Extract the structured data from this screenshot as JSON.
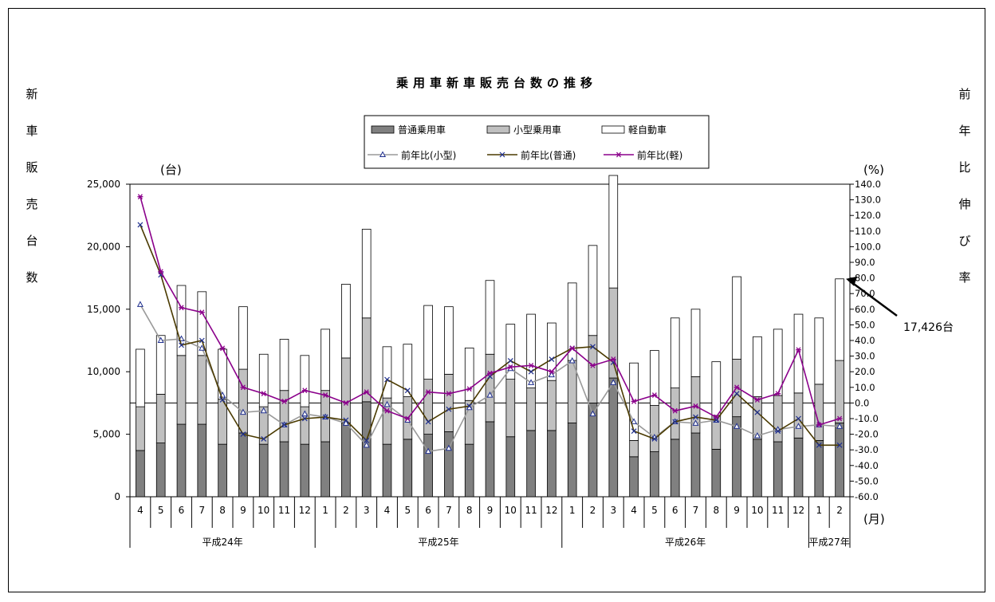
{
  "chart_data": {
    "type": "bar",
    "title": "乗用車新車販売台数の推移",
    "left_axis_label": "新車販売台数",
    "right_axis_label": "前年比伸び率",
    "left_unit": "(台)",
    "right_unit": "(%)",
    "x_unit": "(月)",
    "callout": "17,426台",
    "ylim": [
      0,
      25000
    ],
    "y_ticks": [
      "0",
      "5,000",
      "10,000",
      "15,000",
      "20,000",
      "25,000"
    ],
    "y2lim": [
      -60,
      140
    ],
    "y2_ticks": [
      "-60.0",
      "-50.0",
      "-40.0",
      "-30.0",
      "-20.0",
      "-10.0",
      "0.0",
      "10.0",
      "20.0",
      "30.0",
      "40.0",
      "50.0",
      "60.0",
      "70.0",
      "80.0",
      "90.0",
      "100.0",
      "110.0",
      "120.0",
      "130.0",
      "140.0"
    ],
    "categories": [
      "4",
      "5",
      "6",
      "7",
      "8",
      "9",
      "10",
      "11",
      "12",
      "1",
      "2",
      "3",
      "4",
      "5",
      "6",
      "7",
      "8",
      "9",
      "10",
      "11",
      "12",
      "1",
      "2",
      "3",
      "4",
      "5",
      "6",
      "7",
      "8",
      "9",
      "10",
      "11",
      "12",
      "1",
      "2"
    ],
    "year_groups": [
      {
        "label": "平成24年",
        "count": 9
      },
      {
        "label": "平成25年",
        "count": 12
      },
      {
        "label": "平成26年",
        "count": 12
      },
      {
        "label": "平成27年",
        "count": 2
      }
    ],
    "bar_series": [
      {
        "name": "普通乗用車",
        "color": "#808080",
        "values": [
          3700,
          4300,
          5800,
          5800,
          4200,
          5100,
          4200,
          4400,
          4200,
          4400,
          5900,
          7600,
          4200,
          4600,
          5000,
          5200,
          4200,
          6000,
          4800,
          5300,
          5300,
          5900,
          7500,
          9500,
          3200,
          3600,
          4600,
          5100,
          3800,
          6400,
          4600,
          4400,
          4700,
          4500,
          5900
        ]
      },
      {
        "name": "小型乗用車",
        "color": "#c0c0c0",
        "values": [
          3500,
          3900,
          5500,
          5500,
          3600,
          5100,
          3000,
          4100,
          3000,
          4100,
          5200,
          6700,
          3700,
          3400,
          4400,
          4600,
          3500,
          5400,
          4600,
          3400,
          4000,
          5000,
          5400,
          7200,
          1300,
          3700,
          4100,
          4500,
          2700,
          4600,
          3400,
          3700,
          3600,
          4500,
          5000
        ]
      },
      {
        "name": "軽自動車",
        "color": "#ffffff",
        "values": [
          4600,
          4700,
          5600,
          5100,
          4000,
          5000,
          4200,
          4100,
          4100,
          4900,
          5900,
          7100,
          4100,
          4200,
          5900,
          5400,
          4200,
          5900,
          4400,
          5900,
          4600,
          6200,
          7200,
          9000,
          6200,
          4400,
          5600,
          5400,
          4300,
          6600,
          4800,
          5300,
          6300,
          5300,
          6526
        ]
      }
    ],
    "line_series": [
      {
        "name": "前年比(小型)",
        "color": "#9a9a9a",
        "marker": "triangle",
        "values": [
          63,
          40,
          41,
          35,
          5,
          -6,
          -5,
          -14,
          -7,
          -9,
          -13,
          -27,
          -1,
          -11,
          -31,
          -29,
          -3,
          5,
          22,
          13,
          18,
          27,
          -7,
          13,
          -12,
          -22,
          -12,
          -13,
          -11,
          -15,
          -21,
          -17,
          -15,
          -14,
          -15
        ]
      },
      {
        "name": "前年比(普通)",
        "color": "#4a3a00",
        "marker": "x",
        "values": [
          114,
          82,
          37,
          40,
          2,
          -20,
          -23,
          -14,
          -10,
          -9,
          -11,
          -24,
          15,
          8,
          -12,
          -4,
          -2,
          17,
          27,
          20,
          28,
          35,
          36,
          26,
          -18,
          -23,
          -12,
          -9,
          -11,
          6,
          -6,
          -18,
          -10,
          -27,
          -27
        ]
      },
      {
        "name": "前年比(軽)",
        "color": "#8b008b",
        "marker": "asterisk",
        "values": [
          132,
          84,
          61,
          58,
          35,
          10,
          6,
          1,
          8,
          5,
          0,
          7,
          -5,
          -10,
          7,
          6,
          9,
          19,
          23,
          24,
          20,
          35,
          24,
          28,
          1,
          5,
          -5,
          -2,
          -9,
          10,
          2,
          6,
          34,
          -14,
          -10
        ]
      }
    ]
  }
}
